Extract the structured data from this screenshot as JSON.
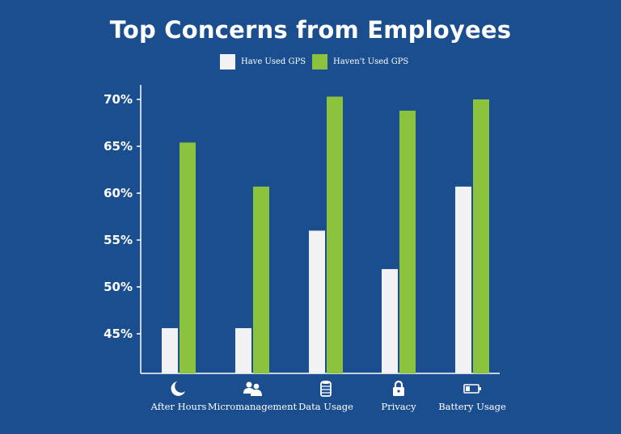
{
  "chart_data": {
    "type": "bar",
    "title": "Top Concerns from Employees",
    "categories": [
      "After Hours",
      "Micromanagement",
      "Data Usage",
      "Privacy",
      "Battery Usage"
    ],
    "category_icons": [
      "moon-icon",
      "people-icon",
      "database-icon",
      "lock-icon",
      "battery-icon"
    ],
    "series": [
      {
        "name": "Have Used GPS",
        "color": "#f2f2f5",
        "values": [
          45.6,
          45.6,
          56.0,
          51.9,
          60.7
        ]
      },
      {
        "name": "Haven't Used GPS",
        "color": "#8bc33f",
        "values": [
          65.4,
          60.7,
          70.3,
          68.8,
          70.0
        ]
      }
    ],
    "y_ticks": [
      "45%",
      "50%",
      "55%",
      "60%",
      "65%",
      "70%"
    ],
    "ylim": [
      41.5,
      71.5
    ],
    "grid": false,
    "legend_position": "top"
  }
}
